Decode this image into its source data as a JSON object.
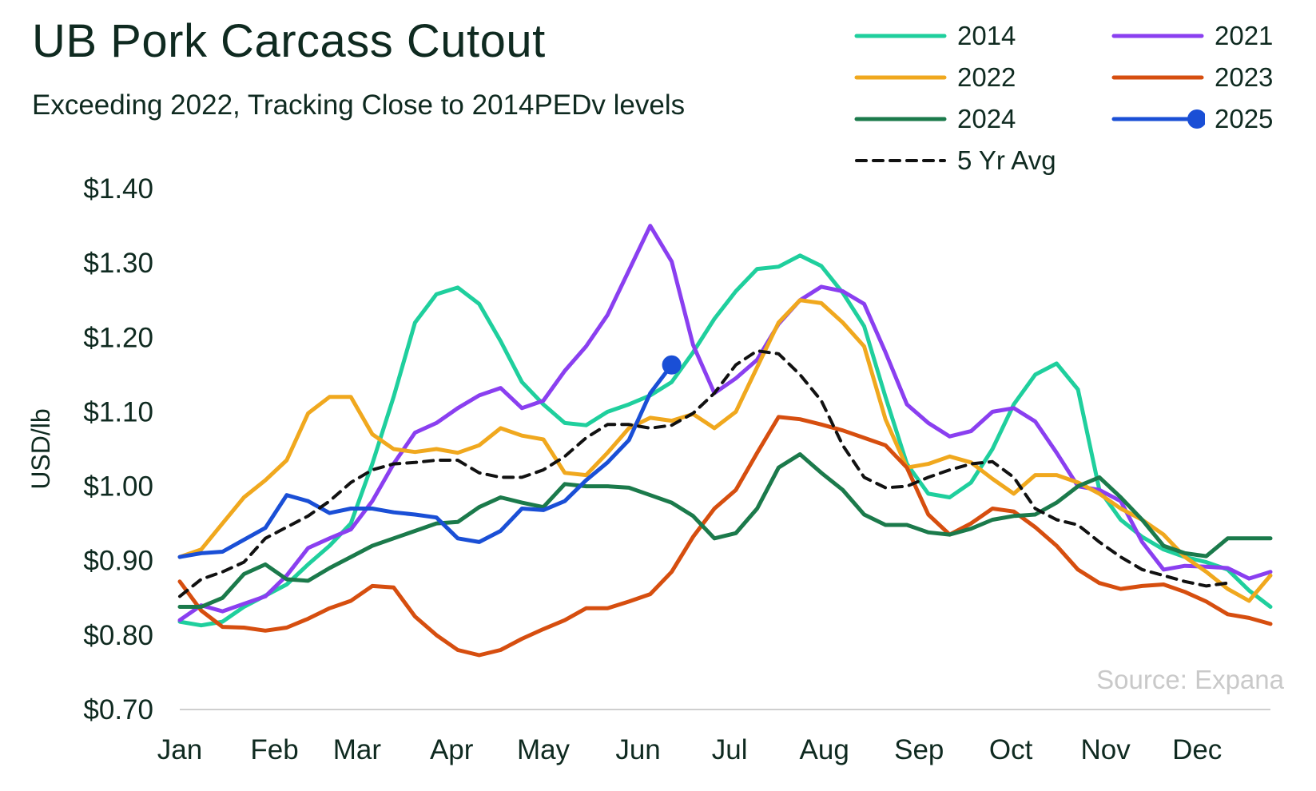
{
  "title": "UB Pork Carcass Cutout",
  "subtitle": "Exceeding 2022, Tracking Close to 2014PEDv levels",
  "source": "Source: Expana",
  "chart_data": {
    "type": "line",
    "title": "UB Pork Carcass Cutout",
    "subtitle": "Exceeding 2022, Tracking Close to 2014PEDv levels",
    "ylabel": "USD/lb",
    "xlabel": "",
    "ylim": [
      0.7,
      1.4
    ],
    "yticks": [
      0.7,
      0.8,
      0.9,
      1.0,
      1.1,
      1.2,
      1.3,
      1.4
    ],
    "ytick_labels": [
      "$0.70",
      "$0.80",
      "$0.90",
      "$1.00",
      "$1.10",
      "$1.20",
      "$1.30",
      "$1.40"
    ],
    "x_unit": "week of year",
    "xlim": [
      1,
      52
    ],
    "months": [
      "Jan",
      "Feb",
      "Mar",
      "Apr",
      "May",
      "Jun",
      "Jul",
      "Aug",
      "Sep",
      "Oct",
      "Nov",
      "Dec"
    ],
    "month_start_weeks": [
      1,
      5.43,
      9.29,
      13.71,
      18,
      22.43,
      26.71,
      31.14,
      35.57,
      39.86,
      44.29,
      48.57
    ],
    "grid": false,
    "legend_position": "top-right",
    "series": [
      {
        "name": "2014",
        "color": "#1fcf9d",
        "x": [
          1,
          2,
          3,
          4,
          5,
          6,
          7,
          8,
          9,
          10,
          11,
          12,
          13,
          14,
          15,
          16,
          17,
          18,
          19,
          20,
          21,
          22,
          23,
          24,
          25,
          26,
          27,
          28,
          29,
          30,
          31,
          32,
          33,
          34,
          35,
          36,
          37,
          38,
          39,
          40,
          41,
          42,
          43,
          44,
          45,
          46,
          47,
          48,
          49,
          50,
          51,
          52
        ],
        "y": [
          0.818,
          0.813,
          0.818,
          0.838,
          0.853,
          0.868,
          0.895,
          0.92,
          0.95,
          1.03,
          1.12,
          1.22,
          1.258,
          1.267,
          1.245,
          1.195,
          1.14,
          1.11,
          1.085,
          1.082,
          1.1,
          1.11,
          1.122,
          1.14,
          1.18,
          1.225,
          1.262,
          1.292,
          1.295,
          1.31,
          1.296,
          1.26,
          1.215,
          1.12,
          1.03,
          0.99,
          0.985,
          1.005,
          1.05,
          1.11,
          1.15,
          1.165,
          1.13,
          0.995,
          0.955,
          0.932,
          0.915,
          0.905,
          0.898,
          0.888,
          0.86,
          0.838
        ]
      },
      {
        "name": "2021",
        "color": "#8a3ff0",
        "x": [
          1,
          2,
          3,
          4,
          5,
          6,
          7,
          8,
          9,
          10,
          11,
          12,
          13,
          14,
          15,
          16,
          17,
          18,
          19,
          20,
          21,
          22,
          23,
          24,
          25,
          26,
          27,
          28,
          29,
          30,
          31,
          32,
          33,
          34,
          35,
          36,
          37,
          38,
          39,
          40,
          41,
          42,
          43,
          44,
          45,
          46,
          47,
          48,
          49,
          50,
          51,
          52
        ],
        "y": [
          0.82,
          0.84,
          0.832,
          0.842,
          0.852,
          0.88,
          0.917,
          0.93,
          0.942,
          0.98,
          1.03,
          1.072,
          1.085,
          1.105,
          1.122,
          1.132,
          1.105,
          1.115,
          1.155,
          1.188,
          1.23,
          1.29,
          1.35,
          1.302,
          1.19,
          1.125,
          1.145,
          1.17,
          1.218,
          1.25,
          1.268,
          1.262,
          1.245,
          1.18,
          1.11,
          1.085,
          1.067,
          1.074,
          1.1,
          1.105,
          1.087,
          1.045,
          1.0,
          0.995,
          0.98,
          0.925,
          0.888,
          0.893,
          0.892,
          0.89,
          0.876,
          0.885
        ]
      },
      {
        "name": "2022",
        "color": "#f0a81e",
        "x": [
          1,
          2,
          3,
          4,
          5,
          6,
          7,
          8,
          9,
          10,
          11,
          12,
          13,
          14,
          15,
          16,
          17,
          18,
          19,
          20,
          21,
          22,
          23,
          24,
          25,
          26,
          27,
          28,
          29,
          30,
          31,
          32,
          33,
          34,
          35,
          36,
          37,
          38,
          39,
          40,
          41,
          42,
          43,
          44,
          45,
          46,
          47,
          48,
          49,
          50,
          51,
          52
        ],
        "y": [
          0.905,
          0.915,
          0.95,
          0.985,
          1.008,
          1.035,
          1.098,
          1.12,
          1.12,
          1.07,
          1.05,
          1.046,
          1.05,
          1.045,
          1.055,
          1.078,
          1.068,
          1.063,
          1.018,
          1.015,
          1.045,
          1.078,
          1.092,
          1.088,
          1.097,
          1.078,
          1.1,
          1.16,
          1.22,
          1.25,
          1.246,
          1.22,
          1.188,
          1.09,
          1.025,
          1.03,
          1.04,
          1.032,
          1.01,
          0.99,
          1.015,
          1.015,
          1.005,
          0.99,
          0.97,
          0.955,
          0.935,
          0.905,
          0.885,
          0.862,
          0.846,
          0.88
        ]
      },
      {
        "name": "2023",
        "color": "#d64e0f",
        "x": [
          1,
          2,
          3,
          4,
          5,
          6,
          7,
          8,
          9,
          10,
          11,
          12,
          13,
          14,
          15,
          16,
          17,
          18,
          19,
          20,
          21,
          22,
          23,
          24,
          25,
          26,
          27,
          28,
          29,
          30,
          31,
          32,
          33,
          34,
          35,
          36,
          37,
          38,
          39,
          40,
          41,
          42,
          43,
          44,
          45,
          46,
          47,
          48,
          49,
          50,
          51,
          52
        ],
        "y": [
          0.872,
          0.833,
          0.811,
          0.81,
          0.806,
          0.81,
          0.822,
          0.836,
          0.846,
          0.866,
          0.864,
          0.825,
          0.8,
          0.78,
          0.773,
          0.78,
          0.795,
          0.808,
          0.82,
          0.836,
          0.836,
          0.845,
          0.855,
          0.885,
          0.932,
          0.97,
          0.995,
          1.045,
          1.093,
          1.09,
          1.083,
          1.075,
          1.065,
          1.055,
          1.025,
          0.962,
          0.935,
          0.95,
          0.97,
          0.966,
          0.945,
          0.92,
          0.888,
          0.87,
          0.862,
          0.866,
          0.868,
          0.858,
          0.845,
          0.828,
          0.823,
          0.815
        ]
      },
      {
        "name": "2024",
        "color": "#1b7a4b",
        "x": [
          1,
          2,
          3,
          4,
          5,
          6,
          7,
          8,
          9,
          10,
          11,
          12,
          13,
          14,
          15,
          16,
          17,
          18,
          19,
          20,
          21,
          22,
          23,
          24,
          25,
          26,
          27,
          28,
          29,
          30,
          31,
          32,
          33,
          34,
          35,
          36,
          37,
          38,
          39,
          40,
          41,
          42,
          43,
          44,
          45,
          46,
          47,
          48,
          49,
          50,
          51,
          52
        ],
        "y": [
          0.838,
          0.838,
          0.85,
          0.882,
          0.895,
          0.875,
          0.873,
          0.89,
          0.905,
          0.92,
          0.93,
          0.94,
          0.95,
          0.952,
          0.972,
          0.985,
          0.978,
          0.972,
          1.003,
          1.0,
          1.0,
          0.998,
          0.988,
          0.978,
          0.96,
          0.93,
          0.937,
          0.97,
          1.025,
          1.043,
          1.018,
          0.995,
          0.962,
          0.948,
          0.948,
          0.938,
          0.935,
          0.943,
          0.955,
          0.96,
          0.962,
          0.978,
          1.0,
          1.012,
          0.985,
          0.955,
          0.92,
          0.91,
          0.906,
          0.93,
          0.93,
          0.93
        ]
      },
      {
        "name": "2025",
        "color": "#1a4fd6",
        "marker_at_end": true,
        "x": [
          1,
          2,
          3,
          4,
          5,
          6,
          7,
          8,
          9,
          10,
          11,
          12,
          13,
          14,
          15,
          16,
          17,
          18,
          19,
          20,
          21,
          22,
          23,
          24
        ],
        "y": [
          0.905,
          0.91,
          0.912,
          0.928,
          0.944,
          0.988,
          0.98,
          0.964,
          0.97,
          0.97,
          0.965,
          0.962,
          0.958,
          0.93,
          0.925,
          0.94,
          0.97,
          0.968,
          0.98,
          1.008,
          1.032,
          1.062,
          1.125,
          1.163
        ]
      },
      {
        "name": "5 Yr Avg",
        "color": "#111111",
        "dashed": true,
        "x": [
          1,
          2,
          3,
          4,
          5,
          6,
          7,
          8,
          9,
          10,
          11,
          12,
          13,
          14,
          15,
          16,
          17,
          18,
          19,
          20,
          21,
          22,
          23,
          24,
          25,
          26,
          27,
          28,
          29,
          30,
          31,
          32,
          33,
          34,
          35,
          36,
          37,
          38,
          39,
          40,
          41,
          42,
          43,
          44,
          45,
          46,
          47,
          48,
          49,
          50
        ],
        "y": [
          0.852,
          0.875,
          0.885,
          0.898,
          0.93,
          0.945,
          0.96,
          0.98,
          1.005,
          1.022,
          1.03,
          1.032,
          1.035,
          1.035,
          1.018,
          1.012,
          1.012,
          1.022,
          1.04,
          1.065,
          1.083,
          1.083,
          1.078,
          1.082,
          1.098,
          1.125,
          1.163,
          1.182,
          1.178,
          1.15,
          1.115,
          1.055,
          1.012,
          0.998,
          1.0,
          1.012,
          1.022,
          1.03,
          1.033,
          1.012,
          0.97,
          0.955,
          0.948,
          0.925,
          0.905,
          0.888,
          0.88,
          0.872,
          0.866,
          0.87
        ]
      }
    ]
  }
}
